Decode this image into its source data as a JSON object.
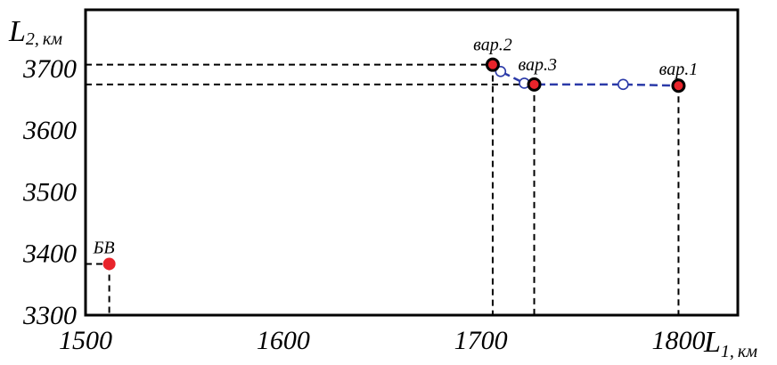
{
  "chart_data": {
    "type": "scatter",
    "xlim": [
      1500,
      1830
    ],
    "ylim": [
      3300,
      3795
    ],
    "x_ticks": [
      "1500",
      "1600",
      "1700",
      "1800"
    ],
    "y_ticks": [
      "3300",
      "3400",
      "3500",
      "3600",
      "3700"
    ],
    "xlabel": {
      "main": "L",
      "sub": "1,",
      "unit": "км"
    },
    "ylabel": {
      "main": "L",
      "sub": "2,",
      "unit": "км"
    },
    "points": [
      {
        "label": "БВ",
        "x": 1512,
        "y": 3383,
        "color": "#e8242b"
      },
      {
        "label": "вар.2",
        "x": 1706,
        "y": 3706,
        "color": "#e8242b"
      },
      {
        "label": "вар.3",
        "x": 1727,
        "y": 3674,
        "color": "#e8242b"
      },
      {
        "label": "вар.1",
        "x": 1800,
        "y": 3672,
        "color": "#e8242b"
      }
    ],
    "path": {
      "color": "#2b3aa8",
      "points": [
        {
          "x": 1706,
          "y": 3706
        },
        {
          "x": 1710,
          "y": 3695
        },
        {
          "x": 1722,
          "y": 3676
        },
        {
          "x": 1727,
          "y": 3674
        },
        {
          "x": 1772,
          "y": 3674
        },
        {
          "x": 1800,
          "y": 3672
        }
      ],
      "markers": [
        {
          "x": 1710,
          "y": 3695
        },
        {
          "x": 1722,
          "y": 3676
        },
        {
          "x": 1772,
          "y": 3674
        }
      ]
    }
  }
}
